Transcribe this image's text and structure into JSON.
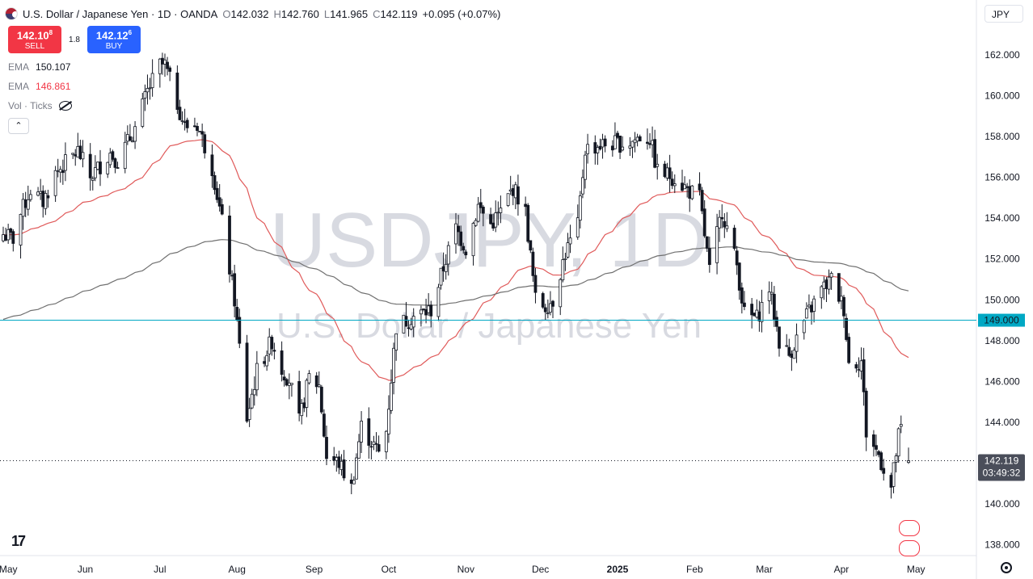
{
  "header": {
    "symbol_line": "U.S. Dollar / Japanese Yen · 1D · OANDA",
    "open_label": "O",
    "open": "142.032",
    "high_label": "H",
    "high": "142.760",
    "low_label": "L",
    "low": "141.965",
    "close_label": "C",
    "close": "142.119",
    "change": "+0.095 (+0.07%)"
  },
  "trade": {
    "sell_price": "142.10",
    "sell_price_sup": "8",
    "sell_label": "SELL",
    "spread": "1.8",
    "buy_price": "142.12",
    "buy_price_sup": "6",
    "buy_label": "BUY"
  },
  "indicators": {
    "ema1_label": "EMA",
    "ema1_value": "150.107",
    "ema2_label": "EMA",
    "ema2_value": "146.861",
    "vol_label": "Vol · Ticks"
  },
  "currency_selector": "JPY",
  "watermark": {
    "big": "USDJPY, 1D",
    "sub": "U.S. Dollar / Japanese Yen"
  },
  "price_labels": {
    "hline": "149.000",
    "last": "142.119",
    "countdown": "03:49:32"
  },
  "colors": {
    "up": "#131722",
    "down": "#131722",
    "ema_fast": "#e05a5a",
    "ema_slow": "#707070",
    "hline": "#00a8c4",
    "sell": "#f23645",
    "buy": "#2962ff"
  },
  "chart_data": {
    "type": "candlestick",
    "title": "USDJPY, 1D",
    "x_tick_labels": [
      "May",
      "Jun",
      "Jul",
      "Aug",
      "Sep",
      "Oct",
      "Nov",
      "Dec",
      "2025",
      "Feb",
      "Mar",
      "Apr",
      "May"
    ],
    "y_tick_labels": [
      "162.000",
      "160.000",
      "158.000",
      "156.000",
      "154.000",
      "152.000",
      "150.000",
      "148.000",
      "146.000",
      "144.000",
      "142.000",
      "140.000",
      "138.000"
    ],
    "y_range": [
      137.5,
      163.5
    ],
    "horizontal_line": 149.0,
    "last_price": 142.119,
    "anchors": [
      [
        "2024-04-29",
        153.2
      ],
      [
        "2024-05-03",
        153.0
      ],
      [
        "2024-05-06",
        154.2
      ],
      [
        "2024-05-10",
        155.4
      ],
      [
        "2024-05-15",
        154.8
      ],
      [
        "2024-05-20",
        156.2
      ],
      [
        "2024-05-29",
        157.3
      ],
      [
        "2024-06-03",
        156.0
      ],
      [
        "2024-06-11",
        157.2
      ],
      [
        "2024-06-14",
        156.8
      ],
      [
        "2024-06-21",
        158.4
      ],
      [
        "2024-06-26",
        160.2
      ],
      [
        "2024-07-01",
        161.5
      ],
      [
        "2024-07-03",
        161.5
      ],
      [
        "2024-07-11",
        158.5
      ],
      [
        "2024-07-16",
        158.6
      ],
      [
        "2024-07-22",
        156.5
      ],
      [
        "2024-07-26",
        153.8
      ],
      [
        "2024-07-31",
        150.0
      ],
      [
        "2024-08-05",
        144.2
      ],
      [
        "2024-08-09",
        146.5
      ],
      [
        "2024-08-15",
        148.0
      ],
      [
        "2024-08-19",
        146.6
      ],
      [
        "2024-08-22",
        146.1
      ],
      [
        "2024-08-26",
        144.0
      ],
      [
        "2024-08-30",
        146.2
      ],
      [
        "2024-09-03",
        145.8
      ],
      [
        "2024-09-06",
        142.3
      ],
      [
        "2024-09-11",
        142.0
      ],
      [
        "2024-09-16",
        140.8
      ],
      [
        "2024-09-20",
        143.8
      ],
      [
        "2024-09-27",
        142.5
      ],
      [
        "2024-09-30",
        143.6
      ],
      [
        "2024-10-04",
        148.7
      ],
      [
        "2024-10-11",
        149.2
      ],
      [
        "2024-10-18",
        149.5
      ],
      [
        "2024-10-24",
        152.0
      ],
      [
        "2024-10-28",
        153.5
      ],
      [
        "2024-11-01",
        152.5
      ],
      [
        "2024-11-06",
        154.6
      ],
      [
        "2024-11-11",
        153.7
      ],
      [
        "2024-11-15",
        154.3
      ],
      [
        "2024-11-20",
        155.5
      ],
      [
        "2024-11-25",
        154.3
      ],
      [
        "2024-11-29",
        150.0
      ],
      [
        "2024-12-03",
        149.7
      ],
      [
        "2024-12-06",
        150.0
      ],
      [
        "2024-12-11",
        152.3
      ],
      [
        "2024-12-16",
        153.6
      ],
      [
        "2024-12-19",
        157.4
      ],
      [
        "2024-12-26",
        157.6
      ],
      [
        "2025-01-06",
        157.7
      ],
      [
        "2025-01-10",
        158.0
      ],
      [
        "2025-01-14",
        157.9
      ],
      [
        "2025-01-17",
        156.3
      ],
      [
        "2025-01-24",
        156.0
      ],
      [
        "2025-01-29",
        155.4
      ],
      [
        "2025-02-03",
        155.0
      ],
      [
        "2025-02-07",
        151.4
      ],
      [
        "2025-02-12",
        154.4
      ],
      [
        "2025-02-18",
        151.7
      ],
      [
        "2025-02-21",
        149.3
      ],
      [
        "2025-02-26",
        149.1
      ],
      [
        "2025-03-03",
        150.6
      ],
      [
        "2025-03-07",
        148.0
      ],
      [
        "2025-03-11",
        147.3
      ],
      [
        "2025-03-18",
        149.2
      ],
      [
        "2025-03-24",
        150.5
      ],
      [
        "2025-03-28",
        151.0
      ],
      [
        "2025-04-02",
        149.6
      ],
      [
        "2025-04-04",
        146.9
      ],
      [
        "2025-04-09",
        147.0
      ],
      [
        "2025-04-11",
        143.5
      ],
      [
        "2025-04-16",
        142.4
      ],
      [
        "2025-04-21",
        140.8
      ],
      [
        "2025-04-24",
        143.3
      ],
      [
        "2025-04-25",
        143.65
      ],
      [
        "2025-04-28",
        142.119
      ]
    ]
  }
}
